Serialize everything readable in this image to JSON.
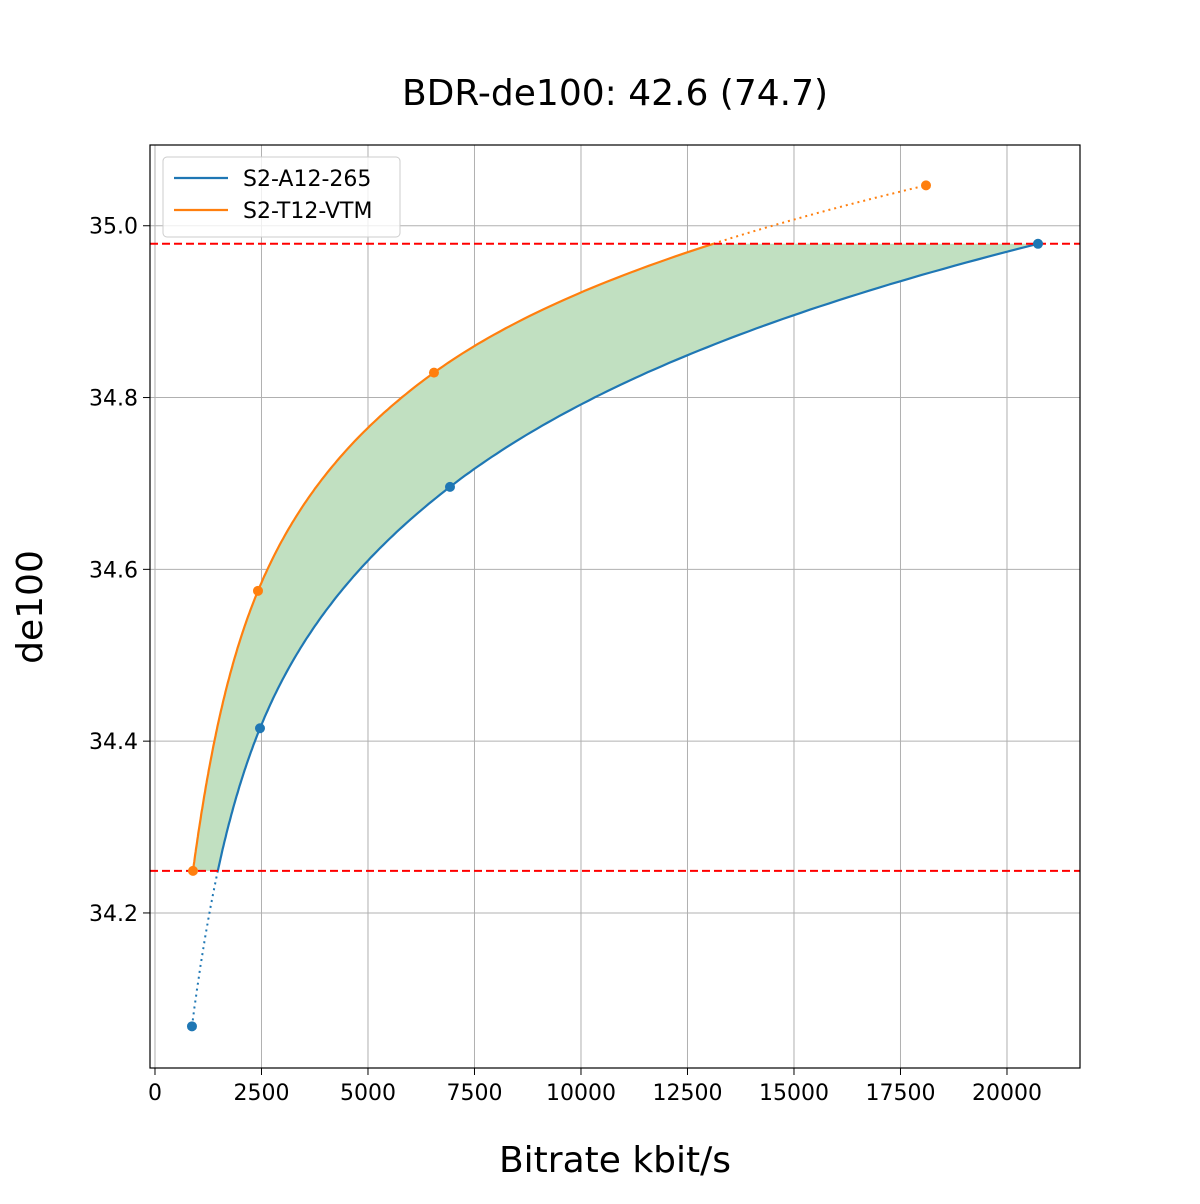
{
  "chart_data": {
    "type": "line",
    "title": "BDR-de100: 42.6 (74.7)",
    "xlabel": "Bitrate kbit/s",
    "ylabel": "de100",
    "xlim": [
      -117,
      21714
    ],
    "ylim": [
      34.0195,
      35.094
    ],
    "xticks": [
      0,
      2500,
      5000,
      7500,
      10000,
      12500,
      15000,
      17500,
      20000
    ],
    "xtick_labels": [
      "0",
      "2500",
      "5000",
      "7500",
      "10000",
      "12500",
      "15000",
      "17500",
      "20000"
    ],
    "yticks": [
      34.2,
      34.4,
      34.6,
      34.8,
      35.0
    ],
    "ytick_labels": [
      "34.2",
      "34.4",
      "34.6",
      "34.8",
      "35.0"
    ],
    "grid": true,
    "legend_position": "top-left",
    "series": [
      {
        "name": "S2-A12-265",
        "color": "#1f77b4",
        "x": [
          868,
          2465,
          6925,
          20728
        ],
        "y": [
          34.068,
          34.415,
          34.696,
          34.979
        ]
      },
      {
        "name": "S2-T12-VTM",
        "color": "#ff7f0e",
        "x": [
          892,
          2418,
          6549,
          18099
        ],
        "y": [
          34.249,
          34.575,
          34.829,
          35.047
        ]
      }
    ],
    "reference_lines": {
      "y": [
        34.249,
        34.979
      ],
      "color": "#ff0000",
      "style": "dashed"
    },
    "fill_color": "#c1e0c1"
  }
}
